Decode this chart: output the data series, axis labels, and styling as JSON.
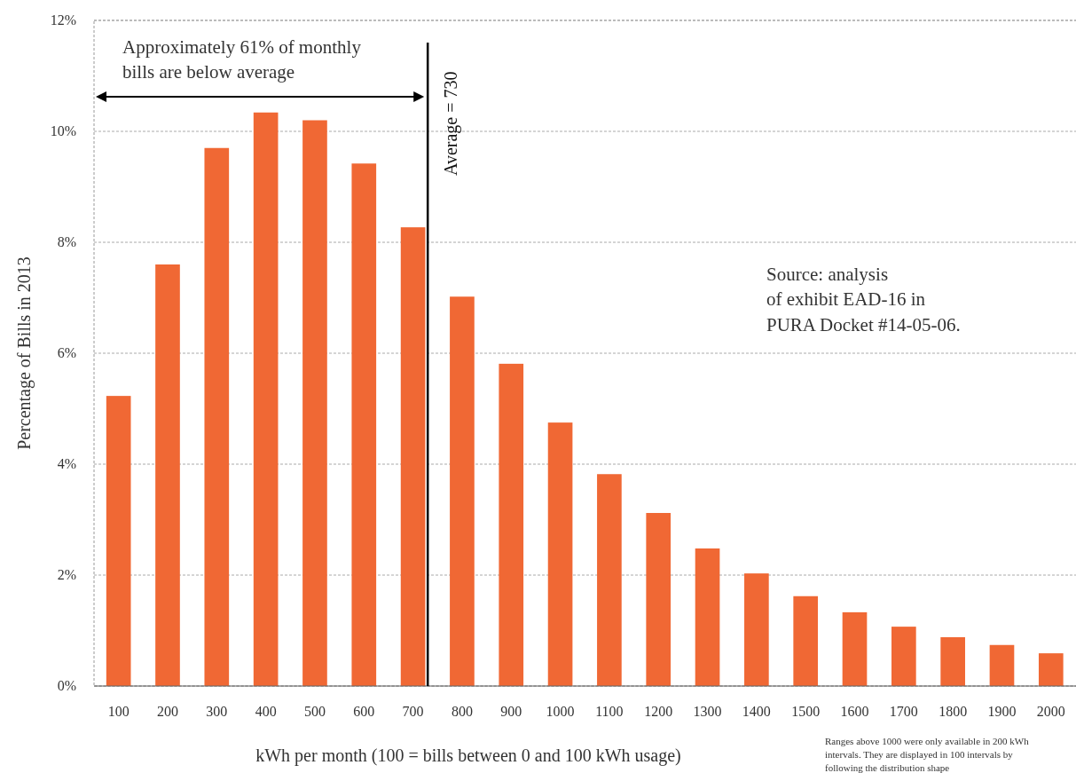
{
  "chart_data": {
    "type": "bar",
    "xlabel": "kWh per month (100 = bills between 0 and 100 kWh usage)",
    "ylabel": "Percentage of Bills in 2013",
    "x": [
      100,
      200,
      300,
      400,
      500,
      600,
      700,
      800,
      900,
      1000,
      1100,
      1200,
      1300,
      1400,
      1500,
      1600,
      1700,
      1800,
      1900,
      2000
    ],
    "values": [
      5.23,
      7.6,
      9.7,
      10.34,
      10.2,
      9.42,
      8.27,
      7.02,
      5.81,
      4.75,
      3.82,
      3.12,
      2.48,
      2.03,
      1.62,
      1.33,
      1.07,
      0.88,
      0.74,
      0.59
    ],
    "color": "#f06834",
    "xlim": [
      50,
      2060
    ],
    "xticks": [
      100,
      200,
      300,
      400,
      500,
      600,
      700,
      800,
      900,
      1000,
      1100,
      1200,
      1300,
      1400,
      1500,
      1600,
      1700,
      1800,
      1900,
      2000
    ],
    "ylim": [
      0,
      12
    ],
    "yticks": [
      {
        "value": 0,
        "label": "0%"
      },
      {
        "value": 2,
        "label": "2%"
      },
      {
        "value": 4,
        "label": "4%"
      },
      {
        "value": 6,
        "label": "6%"
      },
      {
        "value": 8,
        "label": "8%"
      },
      {
        "value": 10,
        "label": "10%"
      },
      {
        "value": 12,
        "label": "12%"
      }
    ],
    "grid": "y",
    "ref_lines": [
      {
        "axis": "x",
        "value": 730,
        "label": "Average = 730",
        "color": "#000000"
      }
    ],
    "annotations": [
      "Approximately 61% of monthly\nbills are below average",
      "Source: analysis\nof exhibit EAD-16 in\nPURA Docket #14-05-06.",
      "Ranges above 1000 were only available in 200 kWh\nintervals. They are displayed in 100 intervals by\nfollowing the distribution shape"
    ]
  }
}
